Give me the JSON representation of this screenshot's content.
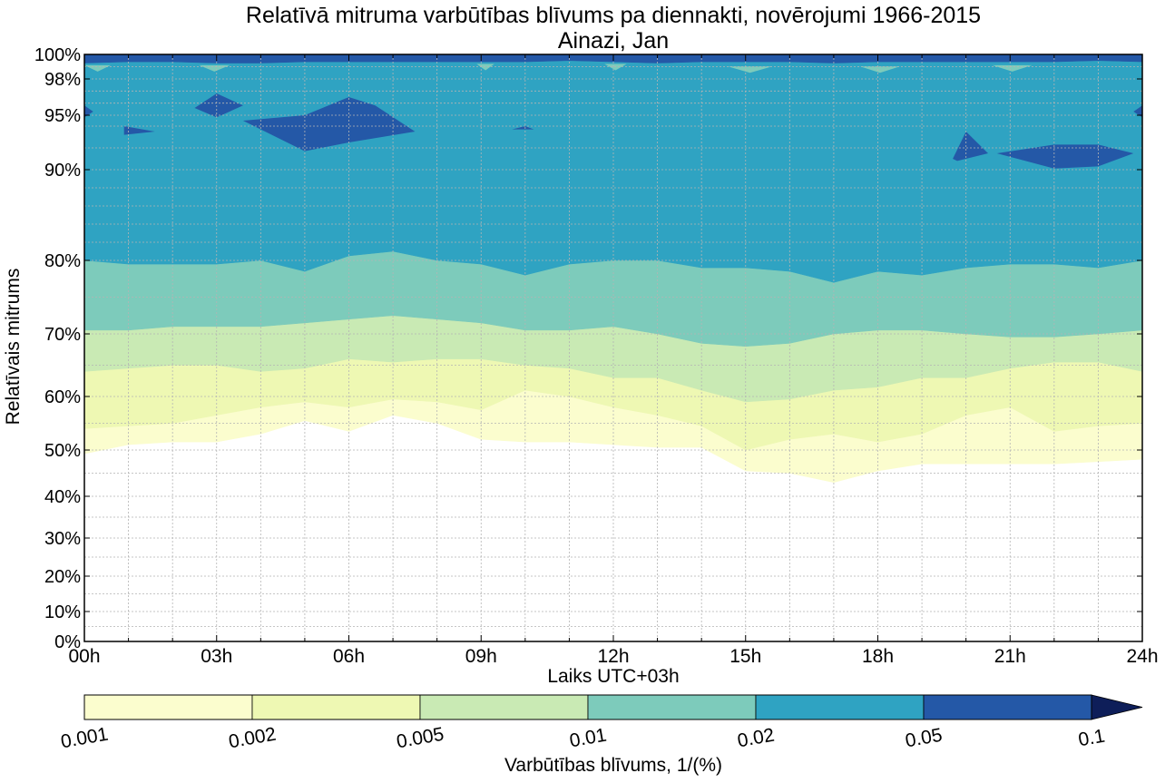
{
  "title": "Relatīvā mitruma varbūtības blīvums pa diennakti, novērojumi 1966-2015",
  "subtitle": "Ainazi, Jan",
  "colors": {
    "level_0": "#fbfdce",
    "level_1": "#eef8b3",
    "level_2": "#c9eab4",
    "level_3": "#7dcbbb",
    "level_4": "#2fa3c2",
    "level_5": "#2458a7",
    "level_6": "#0e1e59",
    "grid": "#b4b4b4"
  },
  "chart_data": {
    "type": "heatmap",
    "xlabel": "Laiks UTC+03h",
    "ylabel": "Relatīvais mitrums",
    "xlim": [
      0,
      24
    ],
    "x_ticks": [
      {
        "value": 0,
        "label": "00h"
      },
      {
        "value": 3,
        "label": "03h"
      },
      {
        "value": 6,
        "label": "06h"
      },
      {
        "value": 9,
        "label": "09h"
      },
      {
        "value": 12,
        "label": "12h"
      },
      {
        "value": 15,
        "label": "15h"
      },
      {
        "value": 18,
        "label": "18h"
      },
      {
        "value": 21,
        "label": "21h"
      },
      {
        "value": 24,
        "label": "24h"
      }
    ],
    "y_scale": "non-linear (expanded toward 100%)",
    "y_ticks": [
      {
        "value": 0,
        "label": "0%"
      },
      {
        "value": 10,
        "label": "10%"
      },
      {
        "value": 20,
        "label": "20%"
      },
      {
        "value": 30,
        "label": "30%"
      },
      {
        "value": 40,
        "label": "40%"
      },
      {
        "value": 50,
        "label": "50%"
      },
      {
        "value": 60,
        "label": "60%"
      },
      {
        "value": 70,
        "label": "70%"
      },
      {
        "value": 80,
        "label": "80%"
      },
      {
        "value": 90,
        "label": "90%"
      },
      {
        "value": 95,
        "label": "95%"
      },
      {
        "value": 98,
        "label": "98%"
      },
      {
        "value": 100,
        "label": "100%"
      }
    ],
    "y_grid_minor": [
      5,
      15,
      25,
      35,
      45,
      55,
      65,
      75,
      82,
      84,
      86,
      88,
      92,
      94,
      96,
      97,
      99
    ],
    "grid": true,
    "hours": [
      0,
      1,
      2,
      3,
      4,
      5,
      6,
      7,
      8,
      9,
      10,
      11,
      12,
      13,
      14,
      15,
      16,
      17,
      18,
      19,
      20,
      21,
      22,
      23,
      24
    ],
    "contour_levels": [
      0.001,
      0.002,
      0.005,
      0.01,
      0.02,
      0.05,
      0.1
    ],
    "contour_boundaries": [
      {
        "level": 0.001,
        "rh": [
          49.2,
          51,
          51.5,
          51.5,
          53,
          55.5,
          53.5,
          56.5,
          55,
          52,
          51.5,
          51.5,
          51,
          50.5,
          50.5,
          45.5,
          45,
          43,
          45.5,
          47,
          47,
          47,
          47,
          47.5,
          48
        ]
      },
      {
        "level": 0.002,
        "rh": [
          54,
          54.5,
          55,
          56.5,
          58,
          59,
          58,
          59.5,
          59,
          57.5,
          61,
          60,
          58,
          56.5,
          54.5,
          50,
          52,
          53,
          51.5,
          53,
          56.5,
          58,
          53.5,
          54.5,
          55
        ]
      },
      {
        "level": 0.005,
        "rh": [
          64,
          64.5,
          65,
          65,
          64,
          64.5,
          66,
          65.5,
          66,
          66,
          65,
          64.5,
          63,
          63,
          61,
          59,
          59.5,
          61,
          61.5,
          63,
          63,
          64.5,
          65.5,
          65.5,
          64
        ]
      },
      {
        "level": 0.01,
        "rh": [
          70.5,
          70.5,
          71,
          71,
          71,
          71.5,
          72,
          72.5,
          72,
          71.5,
          70.5,
          70.5,
          71,
          70,
          68.5,
          68,
          68.5,
          70,
          70.5,
          70.5,
          70,
          69.5,
          69.5,
          70,
          70.5
        ]
      },
      {
        "level": 0.02,
        "rh": [
          80,
          79.5,
          79.5,
          79.5,
          80,
          78.5,
          80.5,
          81,
          80,
          79.5,
          78,
          79.5,
          80,
          80,
          79,
          79,
          78.5,
          77,
          78.5,
          78,
          79,
          79.5,
          79.5,
          79,
          80
        ]
      },
      {
        "level": 0.05,
        "rh": [
          99.3,
          99.4,
          99.4,
          99.3,
          99.3,
          99.4,
          99.4,
          99.4,
          99.4,
          99.4,
          99.4,
          99.5,
          99.4,
          99.3,
          99.4,
          99.4,
          99.4,
          99.3,
          99.4,
          99.4,
          99.4,
          99.4,
          99.4,
          99.5,
          99.4
        ]
      }
    ],
    "dense_patches_0.05": [
      {
        "hours": [
          0,
          0.2,
          0
        ],
        "rh": [
          94.8,
          95.3,
          95.8
        ]
      },
      {
        "hours": [
          0.9,
          1.6,
          0.9
        ],
        "rh": [
          93.2,
          93.5,
          94.0
        ]
      },
      {
        "hours": [
          2.5,
          3,
          3.6,
          3,
          2.5
        ],
        "rh": [
          95.6,
          96.8,
          95.8,
          94.8,
          95.6
        ]
      },
      {
        "hours": [
          3.6,
          5,
          6,
          6.6,
          7.5,
          6,
          5
        ],
        "rh": [
          94.5,
          95.0,
          96.5,
          95.8,
          93.5,
          92.5,
          91.7
        ]
      },
      {
        "hours": [
          9.7,
          10,
          10.2
        ],
        "rh": [
          93.7,
          94.0,
          93.7
        ]
      },
      {
        "hours": [
          19.7,
          20,
          20.5,
          19.8
        ],
        "rh": [
          91.0,
          93.5,
          91.5,
          90.8
        ]
      },
      {
        "hours": [
          20.7,
          22,
          23,
          23.8,
          23,
          22
        ],
        "rh": [
          91.5,
          92.3,
          92.3,
          91.5,
          90.3,
          90.1
        ]
      },
      {
        "hours": [
          24,
          23.8,
          24
        ],
        "rh": [
          94.8,
          95.3,
          95.8
        ]
      }
    ],
    "sparse_spots_0.02": [
      {
        "hours": [
          0,
          0.6
        ],
        "rh": 98.9
      },
      {
        "hours": [
          2.6,
          3.3
        ],
        "rh": 98.9
      },
      {
        "hours": [
          8.9,
          9.3
        ],
        "rh": 99.0
      },
      {
        "hours": [
          11.8,
          12.3
        ],
        "rh": 99.0
      },
      {
        "hours": [
          14.6,
          15.6
        ],
        "rh": 98.8
      },
      {
        "hours": [
          17.6,
          18.5
        ],
        "rh": 98.8
      },
      {
        "hours": [
          20.6,
          21.5
        ],
        "rh": 98.9
      }
    ],
    "colorbar": {
      "label": "Varbūtības blīvums, 1/(%)",
      "tick_labels": [
        "0.001",
        "0.002",
        "0.005",
        "0.01",
        "0.02",
        "0.05",
        "0.1"
      ],
      "extend": "max"
    }
  }
}
